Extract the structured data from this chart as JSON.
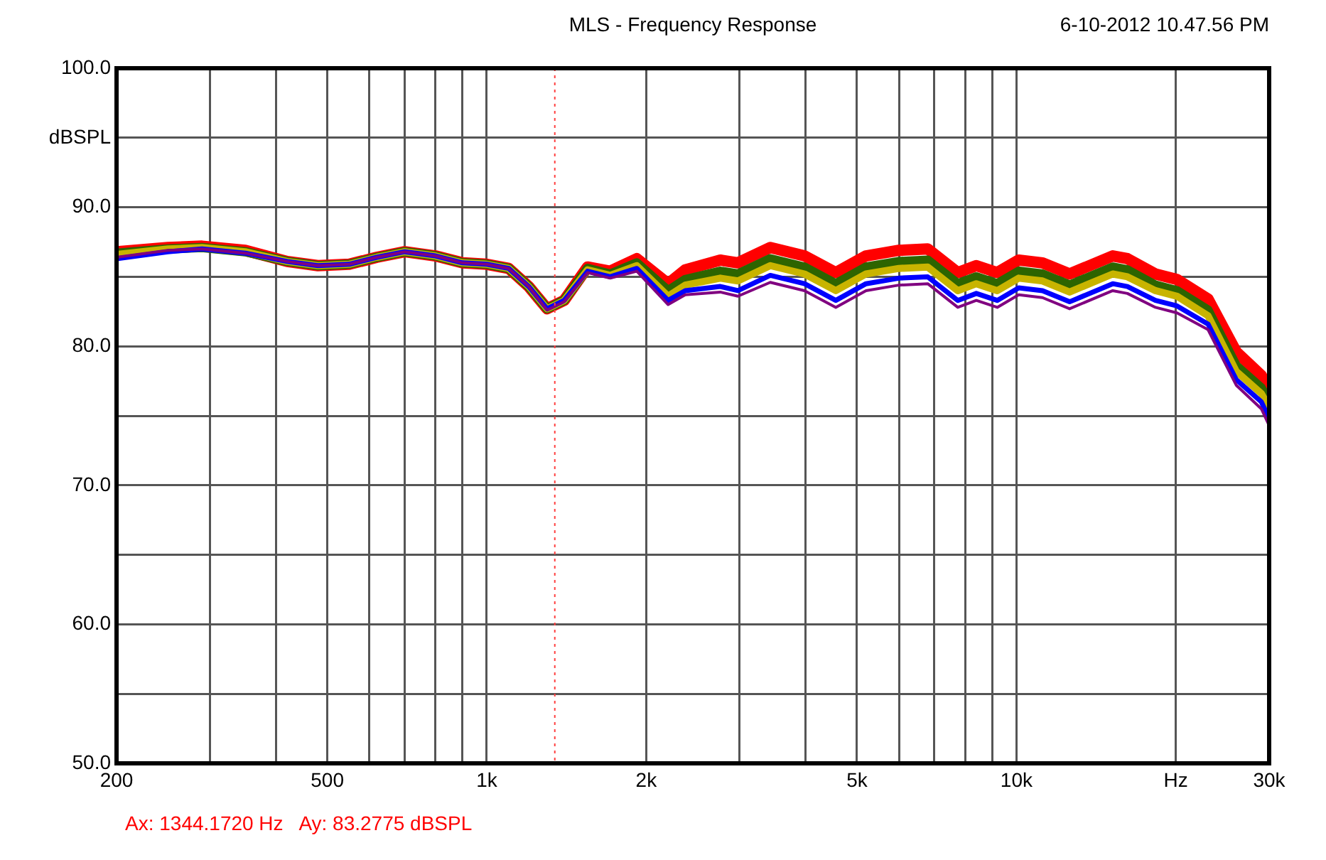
{
  "chart_data": {
    "type": "line",
    "title": "MLS - Frequency Response",
    "subtitle": "6-10-2012 10.47.56 PM",
    "annotations": [
      "Ax: 1344.1720 Hz   Ay: 83.2775 dBSPL"
    ],
    "log": "x",
    "grid": true,
    "marker": "none",
    "xlim": [
      200,
      30000
    ],
    "ylim": [
      50,
      100
    ],
    "xticks": [
      {
        "value": 200,
        "label": "200"
      },
      {
        "value": 300,
        "label": null
      },
      {
        "value": 400,
        "label": null
      },
      {
        "value": 500,
        "label": "500"
      },
      {
        "value": 600,
        "label": null
      },
      {
        "value": 700,
        "label": null
      },
      {
        "value": 800,
        "label": null
      },
      {
        "value": 900,
        "label": null
      },
      {
        "value": 1000,
        "label": "1k"
      },
      {
        "value": 2000,
        "label": "2k"
      },
      {
        "value": 3000,
        "label": null
      },
      {
        "value": 4000,
        "label": null
      },
      {
        "value": 5000,
        "label": "5k"
      },
      {
        "value": 6000,
        "label": null
      },
      {
        "value": 7000,
        "label": null
      },
      {
        "value": 8000,
        "label": null
      },
      {
        "value": 9000,
        "label": null
      },
      {
        "value": 10000,
        "label": "10k"
      },
      {
        "value": 20000,
        "label": "Hz"
      },
      {
        "value": 30000,
        "label": "30k"
      }
    ],
    "yticks": [
      {
        "value": 50,
        "label": "50.0"
      },
      {
        "value": 55,
        "label": null
      },
      {
        "value": 60,
        "label": "60.0"
      },
      {
        "value": 65,
        "label": null
      },
      {
        "value": 70,
        "label": "70.0"
      },
      {
        "value": 75,
        "label": null
      },
      {
        "value": 80,
        "label": "80.0"
      },
      {
        "value": 85,
        "label": null
      },
      {
        "value": 90,
        "label": "90.0"
      },
      {
        "value": 95,
        "label": "dBSPL"
      },
      {
        "value": 100,
        "label": "100.0"
      }
    ],
    "ref_lines": [
      {
        "axis": "x",
        "value": 1344.172,
        "color": "#ff4040",
        "line_style": "dotted"
      }
    ],
    "x": [
      200,
      250,
      290,
      350,
      420,
      480,
      550,
      620,
      700,
      800,
      900,
      1000,
      1100,
      1200,
      1300,
      1400,
      1550,
      1710,
      1920,
      2200,
      2370,
      2760,
      2980,
      3430,
      3980,
      4560,
      5200,
      6000,
      6800,
      7750,
      8400,
      9200,
      10100,
      11200,
      12600,
      15200,
      16200,
      18300,
      20100,
      23000,
      26000,
      29000,
      30000
    ],
    "series": [
      {
        "color": "#ff0000",
        "values": [
          86.8,
          87.1,
          87.2,
          86.9,
          86.1,
          85.8,
          85.9,
          86.4,
          86.8,
          86.5,
          86.0,
          85.9,
          85.6,
          84.3,
          82.7,
          83.3,
          85.7,
          85.4,
          86.3,
          84.5,
          85.5,
          86.2,
          86.0,
          87.1,
          86.5,
          85.3,
          86.5,
          86.9,
          87.0,
          85.3,
          85.8,
          85.3,
          86.2,
          86.0,
          85.2,
          86.5,
          86.3,
          85.2,
          84.8,
          83.4,
          79.6,
          77.9,
          76.6
        ]
      },
      {
        "color": "#2d6400",
        "values": [
          86.7,
          87.0,
          87.1,
          86.8,
          86.1,
          85.8,
          85.9,
          86.4,
          86.8,
          86.5,
          86.0,
          85.9,
          85.6,
          84.3,
          82.7,
          83.3,
          85.6,
          85.2,
          86.0,
          84.0,
          84.8,
          85.4,
          85.2,
          86.3,
          85.7,
          84.5,
          85.7,
          86.1,
          86.2,
          84.5,
          85.0,
          84.5,
          85.4,
          85.2,
          84.4,
          85.7,
          85.5,
          84.4,
          84.0,
          82.6,
          78.6,
          77.0,
          76.0
        ]
      },
      {
        "color": "#c8b400",
        "values": [
          86.6,
          87.0,
          87.1,
          86.8,
          86.1,
          85.8,
          85.9,
          86.4,
          86.8,
          86.5,
          86.0,
          85.9,
          85.6,
          84.3,
          82.7,
          83.3,
          85.5,
          85.1,
          85.8,
          83.6,
          84.4,
          84.9,
          84.7,
          85.8,
          85.2,
          84.0,
          85.2,
          85.6,
          85.7,
          84.0,
          84.5,
          84.0,
          84.9,
          84.7,
          83.9,
          85.2,
          85.0,
          84.0,
          83.6,
          82.2,
          78.2,
          76.6,
          75.6
        ]
      },
      {
        "color": "#0000ff",
        "values": [
          86.3,
          86.8,
          87.0,
          86.7,
          86.1,
          85.8,
          85.9,
          86.4,
          86.8,
          86.5,
          86.0,
          85.9,
          85.6,
          84.3,
          82.7,
          83.3,
          85.4,
          85.0,
          85.6,
          83.3,
          84.0,
          84.3,
          84.0,
          85.1,
          84.5,
          83.3,
          84.5,
          84.9,
          85.0,
          83.3,
          83.8,
          83.3,
          84.2,
          84.0,
          83.2,
          84.5,
          84.3,
          83.3,
          82.9,
          81.6,
          77.6,
          76.0,
          74.8
        ]
      },
      {
        "color": "#800080",
        "values": [
          86.4,
          86.9,
          87.0,
          86.7,
          86.1,
          85.8,
          85.9,
          86.4,
          86.8,
          86.5,
          86.0,
          85.9,
          85.6,
          84.3,
          82.6,
          83.2,
          85.3,
          84.9,
          85.4,
          83.0,
          83.7,
          83.9,
          83.6,
          84.6,
          84.0,
          82.8,
          84.0,
          84.4,
          84.5,
          82.8,
          83.3,
          82.8,
          83.7,
          83.5,
          82.7,
          84.0,
          83.8,
          82.8,
          82.4,
          81.2,
          77.2,
          75.5,
          74.3
        ]
      }
    ]
  }
}
